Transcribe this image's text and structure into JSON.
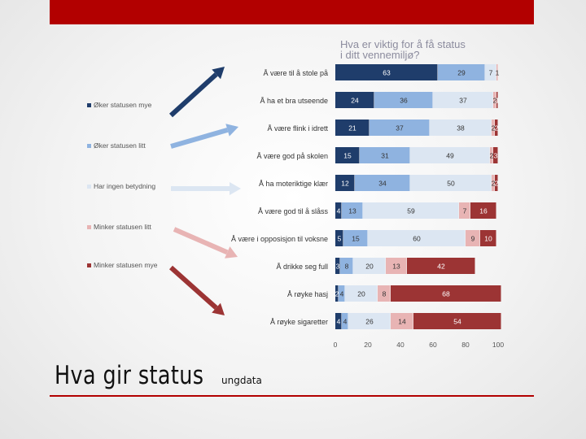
{
  "slide": {
    "title": "Hva gir status",
    "subtitle": "ungdata"
  },
  "colors": {
    "accent": "#b20000",
    "oker_mye": "#1f3d6b",
    "oker_litt": "#8fb3e0",
    "ingen": "#dce6f2",
    "minker_litt": "#e8b4b4",
    "minker_mye": "#9c3434"
  },
  "chart_data": {
    "type": "bar",
    "orientation": "horizontal",
    "stacked": true,
    "title": "Hva er viktig for å få status i ditt vennemiljø?",
    "title_lines": [
      "Hva er viktig for å få status",
      "i ditt vennemiljø?"
    ],
    "categories": [
      "Å være til å stole på",
      "Å ha et bra utseende",
      "Å være flink i idrett",
      "Å være god på skolen",
      "Å ha moteriktige klær",
      "Å være god til å slåss",
      "Å være i opposisjon til voksne",
      "Å drikke seg full",
      "Å røyke hasj",
      "Å røyke sigaretter"
    ],
    "series": [
      {
        "name": "Øker statusen mye",
        "color": "#1f3d6b",
        "values": [
          63,
          24,
          21,
          15,
          12,
          4,
          5,
          3,
          2,
          4
        ]
      },
      {
        "name": "Øker statusen litt",
        "color": "#8fb3e0",
        "values": [
          29,
          36,
          37,
          31,
          34,
          13,
          15,
          8,
          4,
          4
        ]
      },
      {
        "name": "Har ingen betydning",
        "color": "#dce6f2",
        "values": [
          7,
          37,
          38,
          49,
          50,
          59,
          60,
          20,
          20,
          26
        ]
      },
      {
        "name": "Minker statusen litt",
        "color": "#e8b4b4",
        "values": [
          1,
          2,
          2,
          2,
          2,
          7,
          9,
          13,
          8,
          14
        ]
      },
      {
        "name": "Minker statusen mye",
        "color": "#9c3434",
        "values": [
          0,
          1,
          2,
          3,
          2,
          16,
          10,
          42,
          68,
          54
        ]
      }
    ],
    "xlim": [
      0,
      100
    ],
    "xticks": [
      "0",
      "20",
      "40",
      "60",
      "80",
      "100"
    ],
    "grid": false,
    "legend_position": "left"
  }
}
